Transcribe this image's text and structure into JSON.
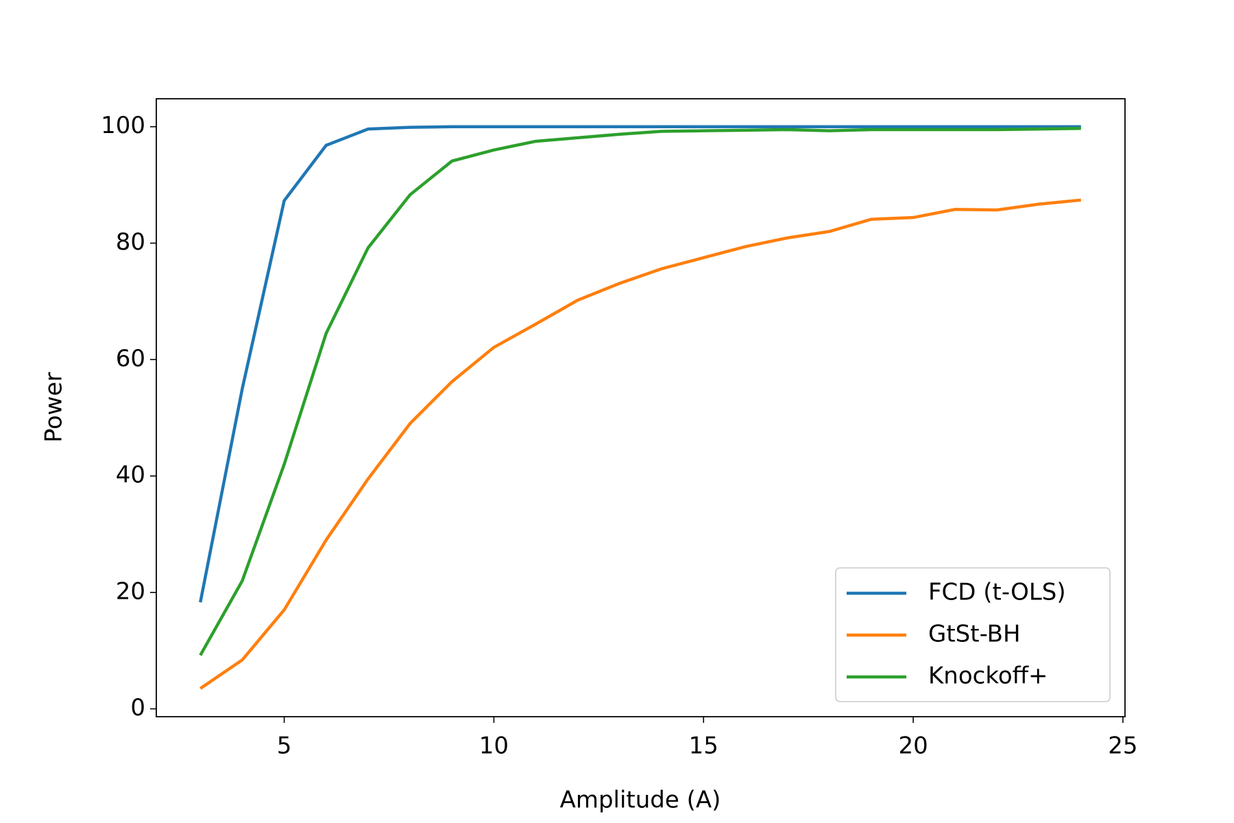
{
  "chart_data": {
    "type": "line",
    "x": [
      3,
      4,
      5,
      6,
      7,
      8,
      9,
      10,
      11,
      12,
      13,
      14,
      15,
      16,
      17,
      18,
      19,
      20,
      21,
      22,
      23,
      24
    ],
    "series": [
      {
        "name": "FCD (t-OLS)",
        "color": "#1f77b4",
        "values": [
          18.3,
          55,
          87.3,
          96.8,
          99.6,
          99.9,
          100,
          100,
          100,
          100,
          100,
          100,
          100,
          100,
          100,
          100,
          100,
          100,
          100,
          100,
          100,
          100
        ]
      },
      {
        "name": "GtSt-BH",
        "color": "#ff7f0e",
        "values": [
          3.5,
          8.4,
          17,
          29,
          39.5,
          49,
          56.2,
          62.1,
          66.1,
          70.2,
          73.1,
          75.6,
          77.5,
          79.4,
          80.9,
          82,
          84.1,
          84.4,
          85.8,
          85.7,
          86.7,
          87.4
        ]
      },
      {
        "name": "Knockoff+",
        "color": "#2ca02c",
        "values": [
          9.2,
          22,
          42,
          64.5,
          79.2,
          88.3,
          94.1,
          96,
          97.5,
          98.1,
          98.7,
          99.2,
          99.3,
          99.4,
          99.5,
          99.3,
          99.5,
          99.5,
          99.5,
          99.5,
          99.6,
          99.7
        ]
      }
    ],
    "xlabel": "Amplitude (A)",
    "ylabel": "Power",
    "xlim": [
      1.95,
      25.05
    ],
    "ylim": [
      -1.35,
      104.8
    ],
    "xticks": [
      5,
      10,
      15,
      20,
      25
    ],
    "yticks": [
      0,
      20,
      40,
      60,
      80,
      100
    ],
    "grid": false,
    "legend_loc": "lower right"
  }
}
